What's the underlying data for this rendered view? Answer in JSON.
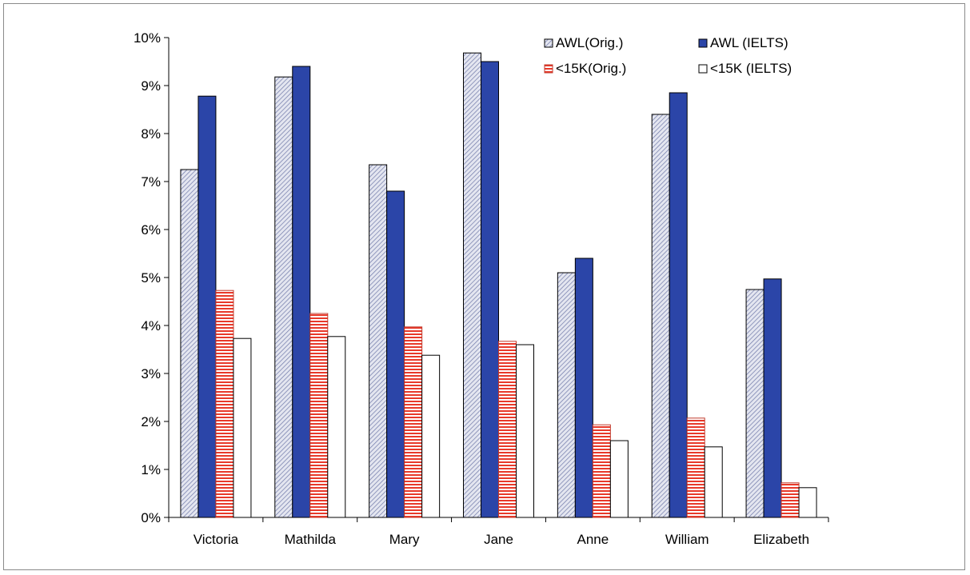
{
  "chart_data": {
    "type": "bar",
    "categories": [
      "Victoria",
      "Mathilda",
      "Mary",
      "Jane",
      "Anne",
      "William",
      "Elizabeth"
    ],
    "series": [
      {
        "name": "AWL(Orig.)",
        "values": [
          7.25,
          9.18,
          7.35,
          9.68,
          5.1,
          8.4,
          4.75
        ],
        "color": "#c9cde0",
        "pattern": "diagonal-hatch"
      },
      {
        "name": "AWL (IELTS)",
        "values": [
          8.78,
          9.4,
          6.8,
          9.5,
          5.4,
          8.85,
          4.97
        ],
        "color": "#2b45a8",
        "pattern": "solid"
      },
      {
        "name": "<15K(Orig.)",
        "values": [
          4.73,
          4.25,
          3.97,
          3.67,
          1.93,
          2.07,
          0.72
        ],
        "color": "#e8392a",
        "pattern": "horizontal-stripes"
      },
      {
        "name": "<15K (IELTS)",
        "values": [
          3.73,
          3.77,
          3.38,
          3.6,
          1.6,
          1.47,
          0.62
        ],
        "color": "#ffffff",
        "pattern": "solid"
      }
    ],
    "yticks": [
      "0%",
      "1%",
      "2%",
      "3%",
      "4%",
      "5%",
      "6%",
      "7%",
      "8%",
      "9%",
      "10%"
    ],
    "ylim": [
      0,
      10
    ],
    "yunit": "%",
    "grid": false,
    "legend_position": "top-right"
  }
}
